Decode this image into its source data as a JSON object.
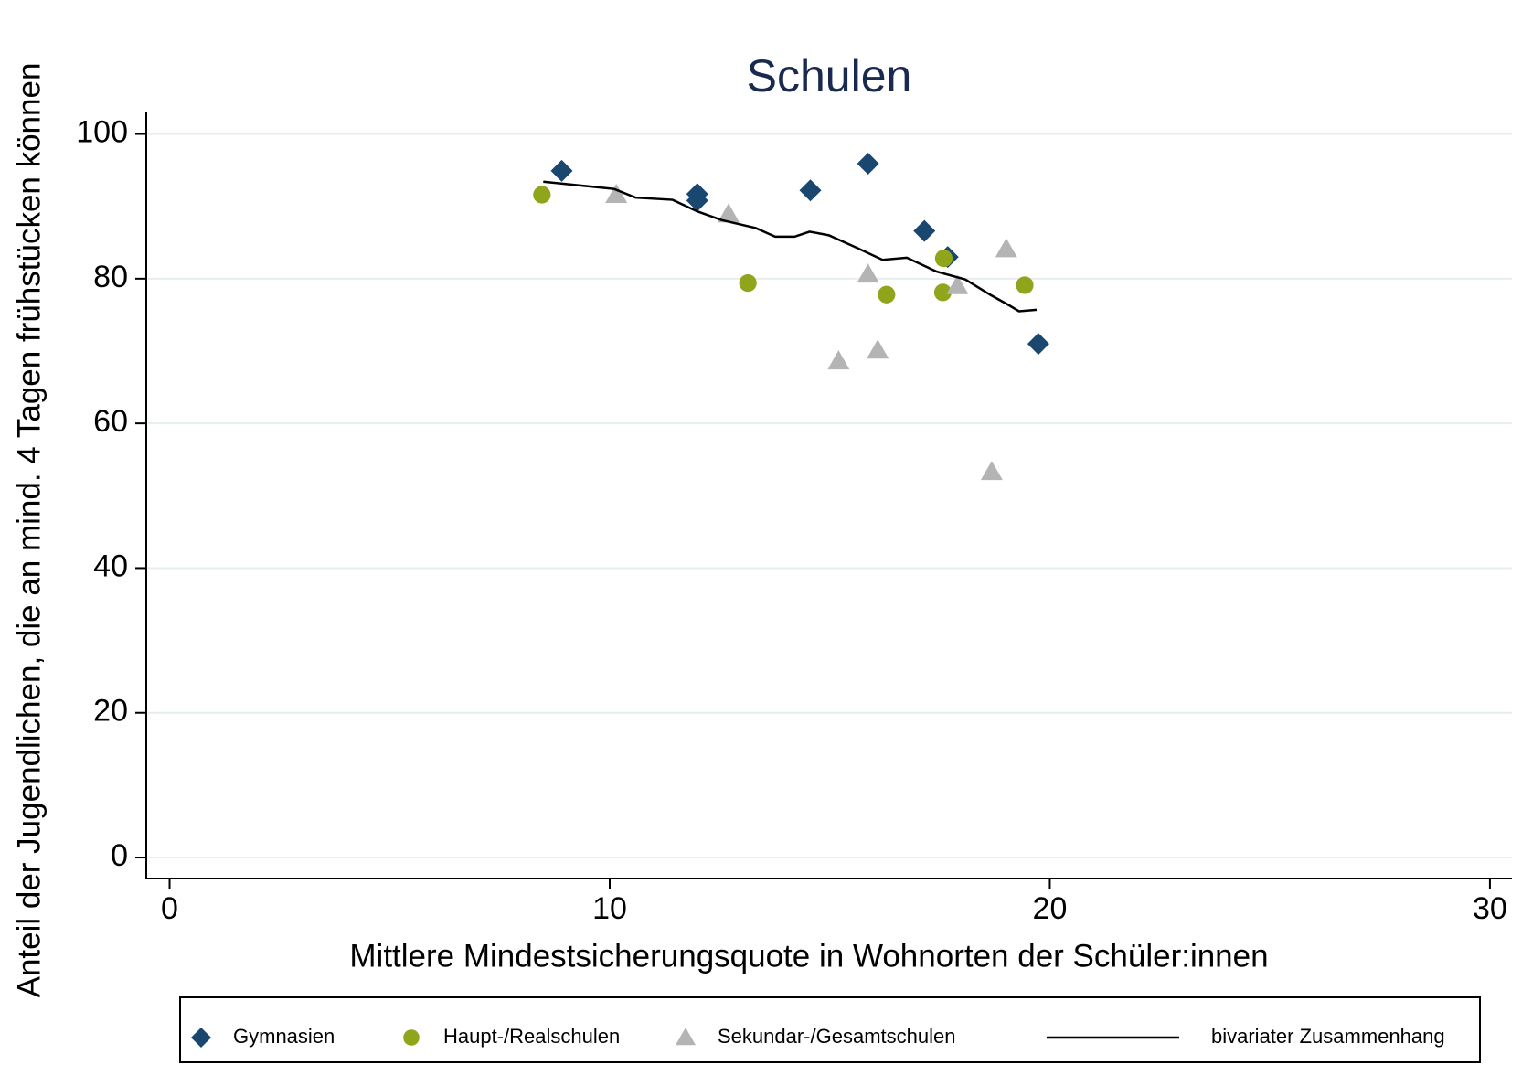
{
  "chart_data": {
    "type": "scatter",
    "title": "Schulen",
    "x_label": "Mittlere Mindestsicherungsquote in Wohnorten der Schüler:innen",
    "y_label": "Anteil der Jugendlichen, die an mind. 4 Tagen frühstücken können",
    "xlim": [
      -0.53,
      30.5
    ],
    "ylim": [
      -2.9,
      103.1
    ],
    "xticks": [
      0,
      10,
      20,
      30
    ],
    "yticks": [
      0,
      20,
      40,
      60,
      80,
      100
    ],
    "grid": true,
    "series": [
      {
        "name": "Gymnasien",
        "color": "#1a476f",
        "marker": "diamond",
        "x": [
          8.91,
          11.99,
          11.99,
          14.56,
          15.87,
          17.15,
          17.68,
          19.74
        ],
        "values": [
          94.9,
          91.7,
          90.8,
          92.2,
          95.9,
          86.6,
          83.0,
          71.0
        ]
      },
      {
        "name": "Haupt-/Realschulen",
        "color": "#90a41c",
        "marker": "circle",
        "x": [
          8.46,
          13.14,
          16.29,
          17.57,
          17.59,
          19.43
        ],
        "values": [
          91.6,
          79.4,
          77.8,
          78.1,
          82.8,
          79.1
        ]
      },
      {
        "name": "Sekundar-/Gesamtschulen",
        "color": "#b4b4b4",
        "marker": "triangle",
        "x": [
          10.15,
          12.7,
          15.87,
          15.2,
          16.09,
          17.9,
          19.01,
          18.68
        ],
        "values": [
          91.6,
          88.9,
          80.6,
          68.6,
          70.1,
          79.0,
          84.1,
          53.3
        ]
      },
      {
        "name": "bivariater Zusammenhang",
        "color": "#000000",
        "marker": "line",
        "x": [
          8.49,
          10.1,
          10.59,
          11.43,
          11.99,
          12.54,
          13.32,
          13.76,
          14.2,
          14.54,
          14.98,
          15.64,
          16.2,
          16.75,
          17.42,
          18.08,
          18.64,
          19.08,
          19.3,
          19.7
        ],
        "values": [
          93.4,
          92.4,
          91.2,
          90.9,
          89.3,
          88.1,
          87.0,
          85.8,
          85.8,
          86.5,
          86.0,
          84.2,
          82.6,
          82.9,
          81.0,
          79.9,
          77.8,
          76.3,
          75.5,
          75.7
        ]
      }
    ]
  }
}
